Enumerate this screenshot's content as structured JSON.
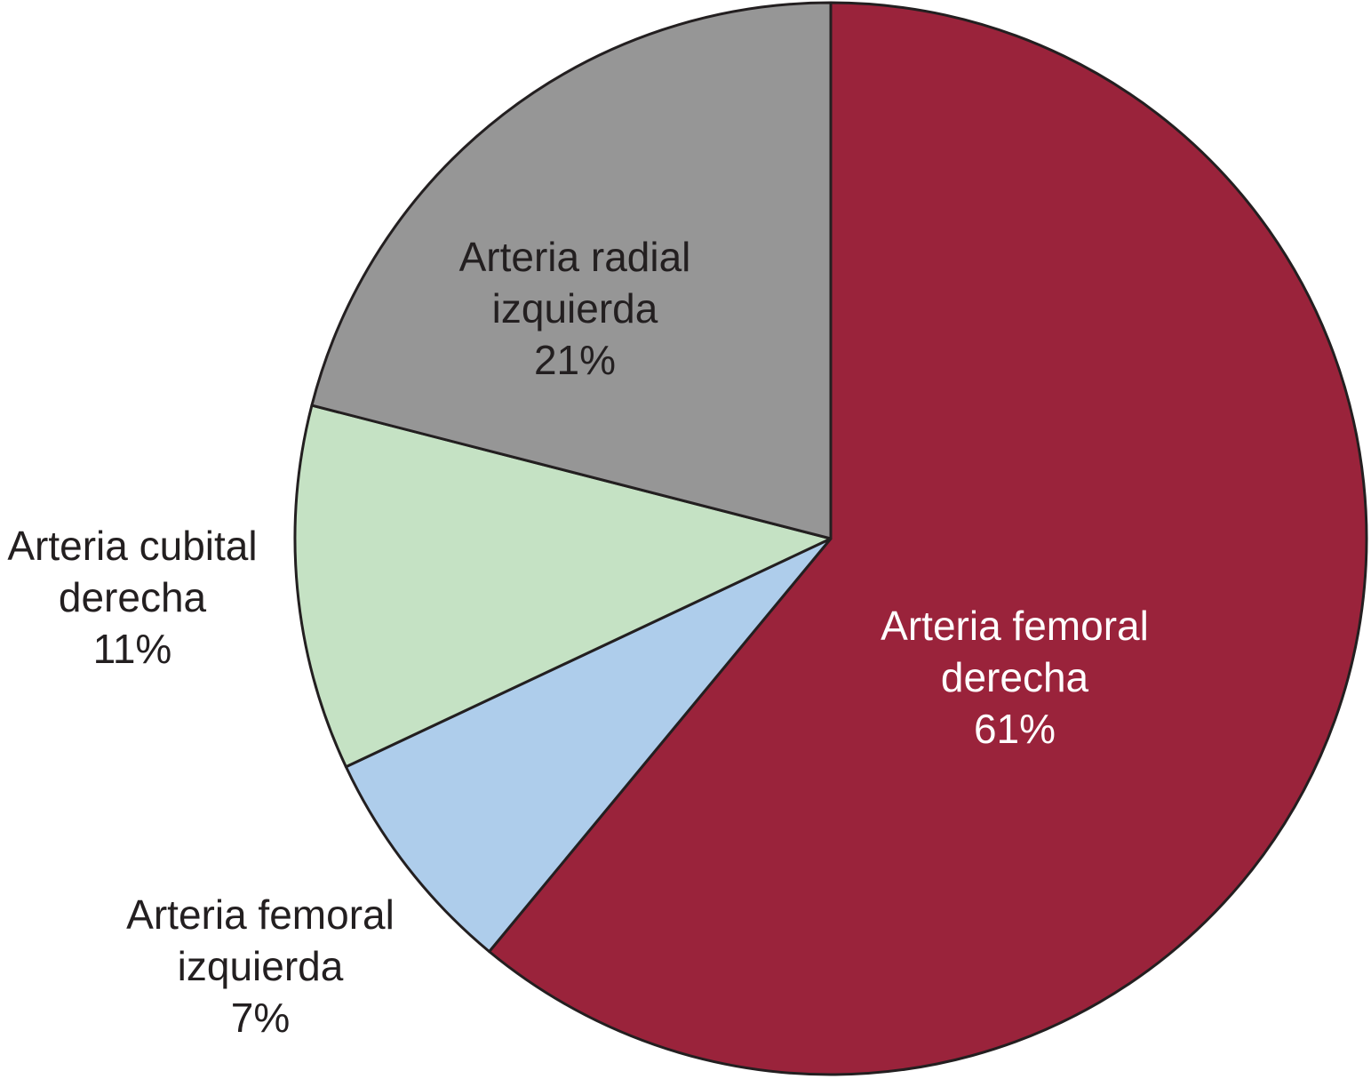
{
  "chart_data": {
    "type": "pie",
    "title": "",
    "start": "12 o'clock",
    "direction": "clockwise",
    "slices": [
      {
        "lines": [
          "Arteria femoral",
          "derecha"
        ],
        "value_label": "61%",
        "value": 61,
        "color": "#9a233b",
        "text_color": "#ffffff"
      },
      {
        "lines": [
          "Arteria femoral",
          "izquierda"
        ],
        "value_label": "7%",
        "value": 7,
        "color": "#aecdeb",
        "text_color": "#231f20"
      },
      {
        "lines": [
          "Arteria cubital",
          "derecha"
        ],
        "value_label": "11%",
        "value": 11,
        "color": "#c5e2c4",
        "text_color": "#231f20"
      },
      {
        "lines": [
          "Arteria radial",
          "izquierda"
        ],
        "value_label": "21%",
        "value": 21,
        "color": "#969696",
        "text_color": "#231f20"
      }
    ]
  }
}
